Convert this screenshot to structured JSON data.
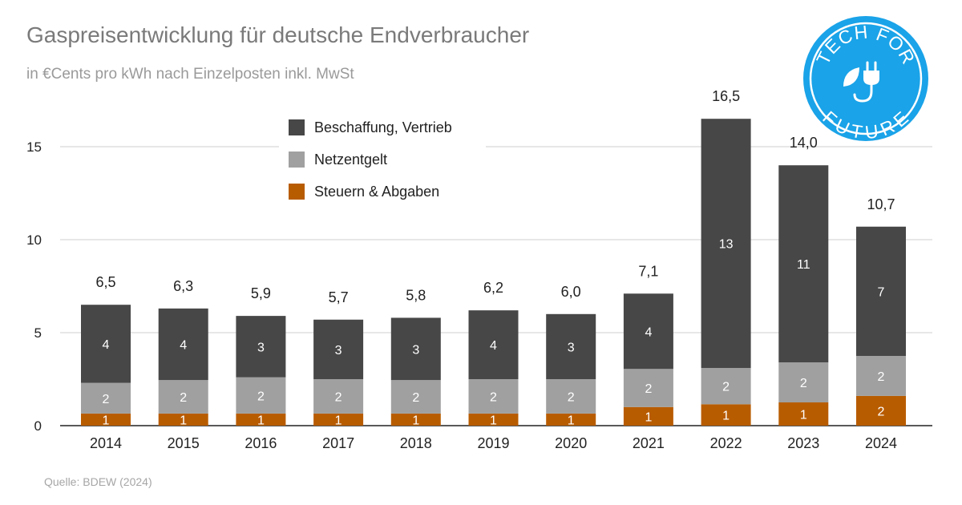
{
  "title": "Gaspreisentwicklung für deutsche Endverbraucher",
  "subtitle": "in €Cents pro kWh nach Einzelposten inkl. MwSt",
  "source": "Quelle: BDEW (2024)",
  "logo": {
    "top_text": "TECH FOR",
    "bottom_text": "FUTURE",
    "color": "#1aa3e8",
    "icon": "plug-leaf-icon"
  },
  "chart_data": {
    "type": "bar",
    "stacked": true,
    "categories": [
      "2014",
      "2015",
      "2016",
      "2017",
      "2018",
      "2019",
      "2020",
      "2021",
      "2022",
      "2023",
      "2024"
    ],
    "ylim": [
      0,
      17.5
    ],
    "yticks": [
      0,
      5,
      10,
      15
    ],
    "grid": true,
    "legend_position": "top-center",
    "series": [
      {
        "name": "Steuern & Abgaben",
        "color": "#b85c00",
        "values": [
          0.65,
          0.65,
          0.65,
          0.65,
          0.65,
          0.65,
          0.65,
          1.0,
          1.15,
          1.25,
          1.6
        ],
        "labels": [
          "1",
          "1",
          "1",
          "1",
          "1",
          "1",
          "1",
          "1",
          "1",
          "1",
          "2"
        ]
      },
      {
        "name": "Netzentgelt",
        "color": "#a0a0a0",
        "values": [
          1.65,
          1.8,
          1.95,
          1.85,
          1.8,
          1.85,
          1.85,
          2.05,
          1.95,
          2.15,
          2.15
        ],
        "labels": [
          "2",
          "2",
          "2",
          "2",
          "2",
          "2",
          "2",
          "2",
          "2",
          "2",
          "2"
        ]
      },
      {
        "name": "Beschaffung, Vertrieb",
        "color": "#474747",
        "values": [
          4.2,
          3.85,
          3.3,
          3.2,
          3.35,
          3.7,
          3.5,
          4.05,
          13.4,
          10.6,
          6.95
        ],
        "labels": [
          "4",
          "4",
          "3",
          "3",
          "3",
          "4",
          "3",
          "4",
          "13",
          "11",
          "7"
        ]
      }
    ],
    "totals": [
      "6,5",
      "6,3",
      "5,9",
      "5,7",
      "5,8",
      "6,2",
      "6,0",
      "7,1",
      "16,5",
      "14,0",
      "10,7"
    ],
    "legend_order": [
      "Beschaffung, Vertrieb",
      "Netzentgelt",
      "Steuern & Abgaben"
    ]
  }
}
